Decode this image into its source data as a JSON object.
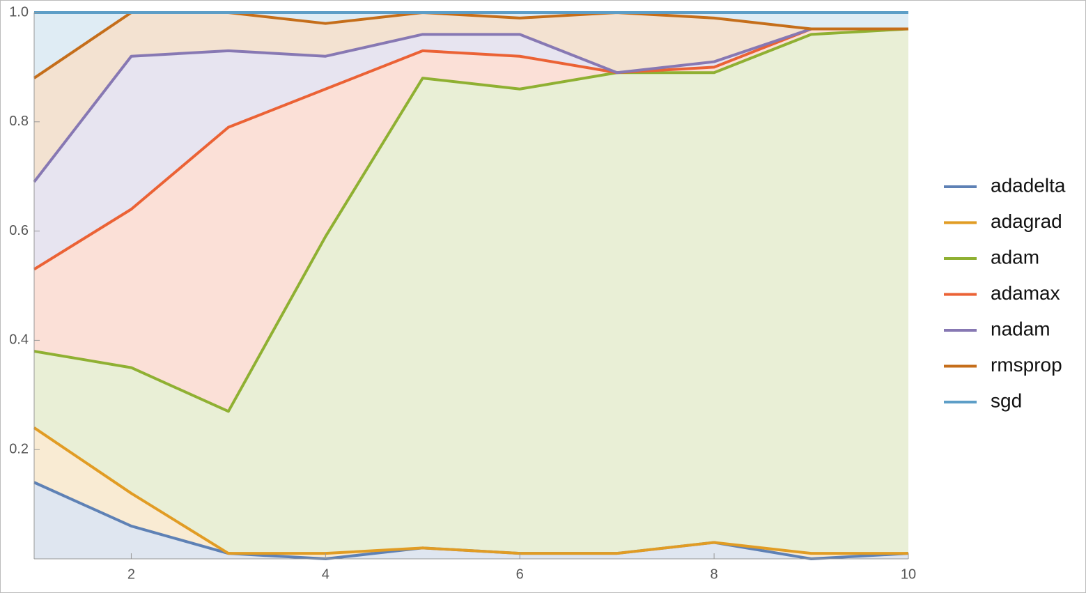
{
  "chart_data": {
    "type": "stacked_area",
    "x": [
      1,
      2,
      3,
      4,
      5,
      6,
      7,
      8,
      9,
      10
    ],
    "series": [
      {
        "name": "adadelta",
        "color": "#5e81b5",
        "values": [
          0.14,
          0.06,
          0.01,
          0,
          0.02,
          0.01,
          0.01,
          0.03,
          0,
          0.01
        ]
      },
      {
        "name": "adagrad",
        "color": "#e19c24",
        "values": [
          0.1,
          0.06,
          0,
          0.01,
          0,
          0,
          0,
          0,
          0.01,
          0
        ]
      },
      {
        "name": "adam",
        "color": "#8fb032",
        "values": [
          0.14,
          0.23,
          0.26,
          0.58,
          0.86,
          0.85,
          0.88,
          0.86,
          0.95,
          0.96
        ]
      },
      {
        "name": "adamax",
        "color": "#eb6235",
        "values": [
          0.15,
          0.29,
          0.52,
          0.27,
          0.05,
          0.06,
          0,
          0.01,
          0.01,
          0
        ]
      },
      {
        "name": "nadam",
        "color": "#8778b3",
        "values": [
          0.16,
          0.28,
          0.14,
          0.06,
          0.03,
          0.04,
          0,
          0.01,
          0,
          0
        ]
      },
      {
        "name": "rmsprop",
        "color": "#c56e1a",
        "values": [
          0.19,
          0.08,
          0.07,
          0.06,
          0.04,
          0.03,
          0.11,
          0.08,
          0,
          0
        ]
      },
      {
        "name": "sgd",
        "color": "#5d9ec7",
        "values": [
          0.12,
          0,
          0,
          0.02,
          0,
          0.01,
          0,
          0.01,
          0.03,
          0.03
        ]
      }
    ],
    "xlim": [
      1,
      10
    ],
    "xticks": [
      2,
      4,
      6,
      8,
      10
    ],
    "ylim": [
      0,
      1
    ],
    "yticks": [
      0.2,
      0.4,
      0.6,
      0.8,
      {
        "value": 1,
        "label": "1.0"
      }
    ],
    "legend": "right"
  }
}
